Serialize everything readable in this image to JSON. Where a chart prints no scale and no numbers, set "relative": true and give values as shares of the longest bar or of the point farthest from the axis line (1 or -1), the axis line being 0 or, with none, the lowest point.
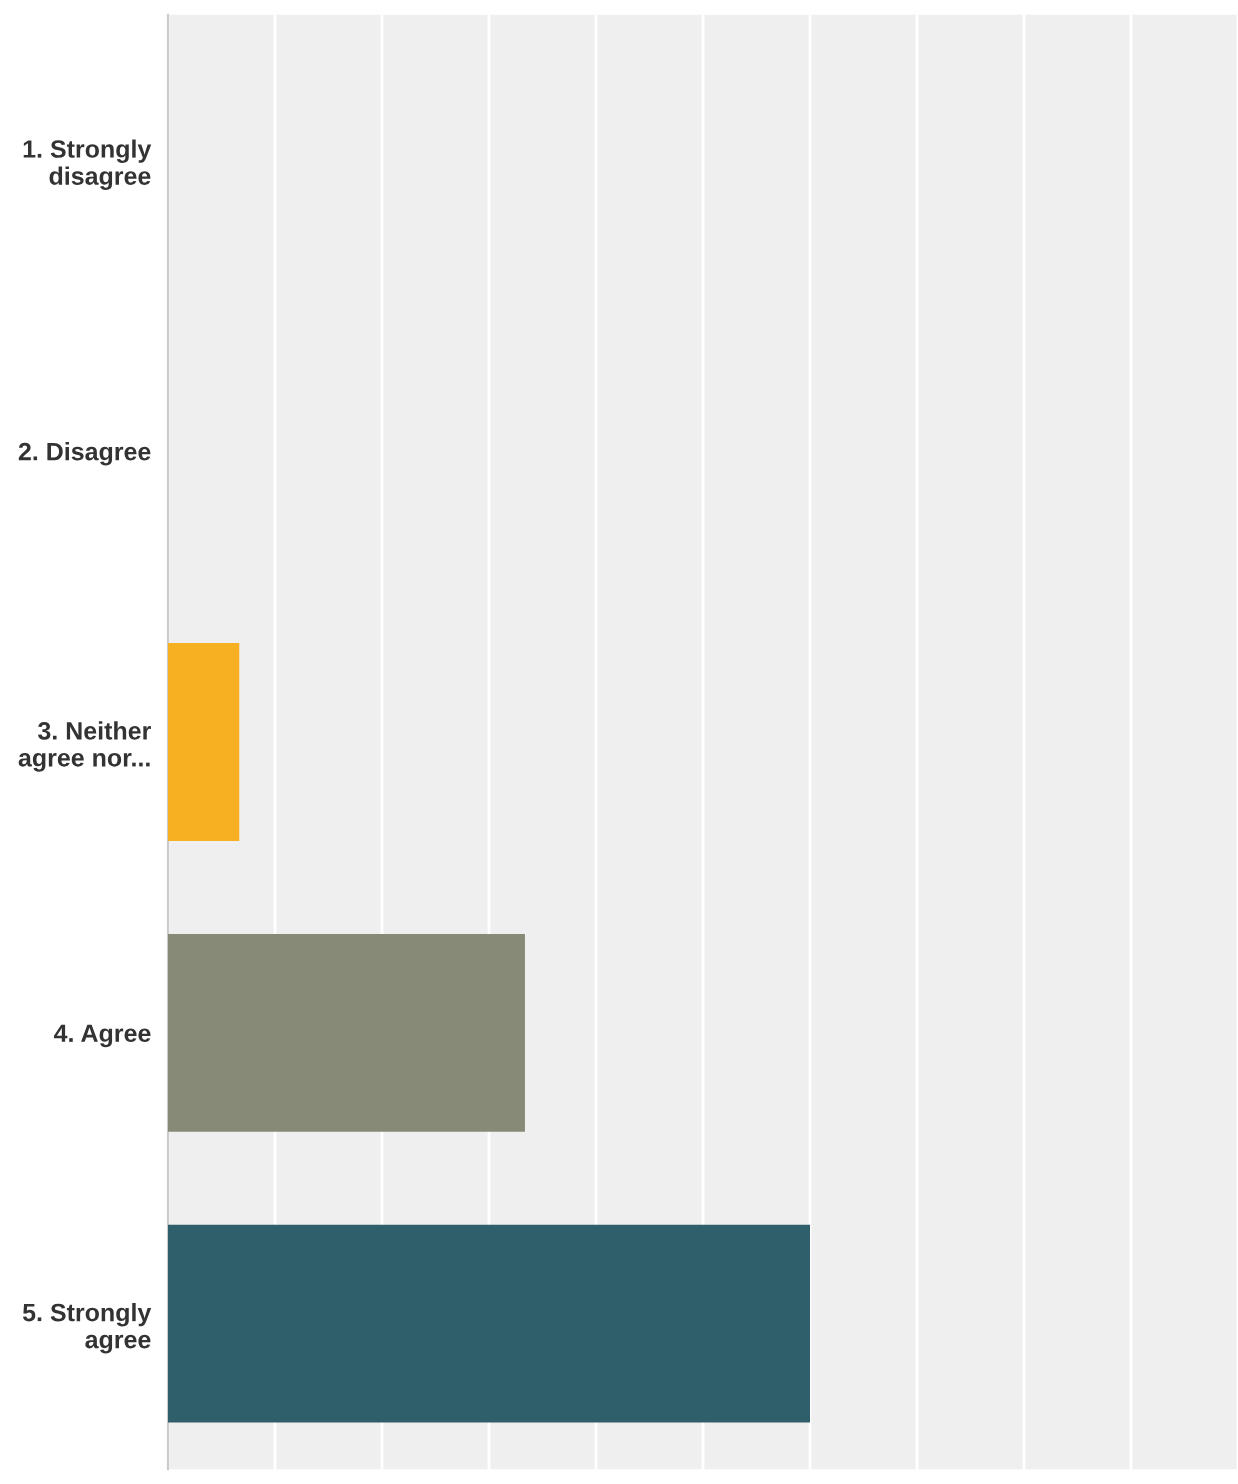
{
  "chart_data": {
    "type": "bar",
    "orientation": "horizontal",
    "relative": true,
    "grid": "x",
    "categories": [
      "1. Strongly\ndisagree",
      "2. Disagree",
      "3. Neither\nagree nor...",
      "4. Agree",
      "5. Strongly\nagree"
    ],
    "values": [
      0,
      0,
      0.111,
      0.556,
      1
    ],
    "colors": [
      "#2e5f6b",
      "#888a78",
      "#f6b022",
      "#888a78",
      "#2e5f6b"
    ]
  }
}
